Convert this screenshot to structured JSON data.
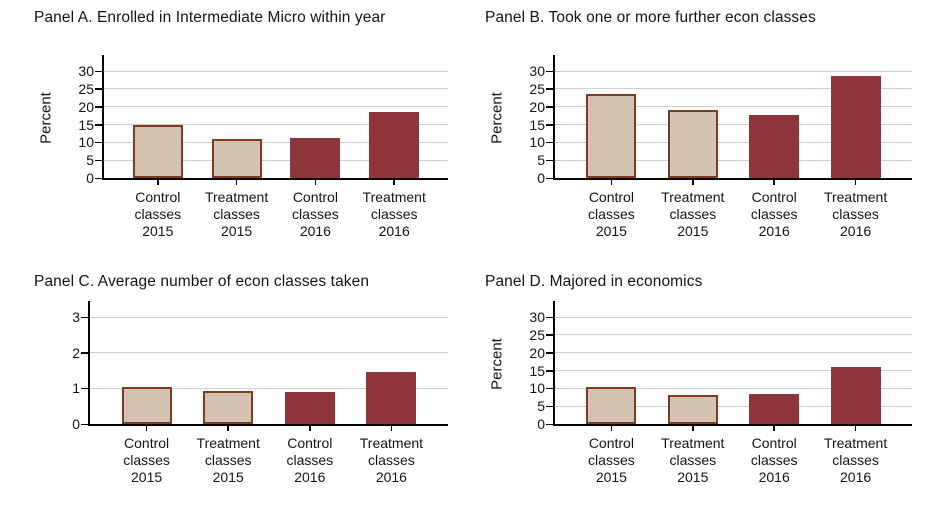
{
  "figure": {
    "background": "#ffffff"
  },
  "colors": {
    "tan_fill": "#d4c3b0",
    "tan_border": "#7f3d1d",
    "maroon_fill": "#8e343b",
    "maroon_border": "#8e343b",
    "gridline": "#cdcdd0",
    "axis": "#000000",
    "text": "#141414"
  },
  "chart_data": [
    {
      "type": "bar",
      "title": "Panel A. Enrolled in Intermediate Micro within year",
      "ylabel": "Percent",
      "xlabel": "",
      "ylim": [
        0,
        30
      ],
      "yticks": [
        0,
        5,
        10,
        15,
        20,
        25,
        30
      ],
      "grid": true,
      "legend": false,
      "categories": [
        "Control\nclasses\n2015",
        "Treatment\nclasses\n2015",
        "Control\nclasses\n2016",
        "Treatment\nclasses\n2016"
      ],
      "values": [
        14.9,
        11.0,
        11.2,
        18.6
      ],
      "bar_styles": [
        "tan",
        "tan",
        "maroon",
        "maroon"
      ]
    },
    {
      "type": "bar",
      "title": "Panel B. Took one or more further econ classes",
      "ylabel": "Percent",
      "xlabel": "",
      "ylim": [
        0,
        30
      ],
      "yticks": [
        0,
        5,
        10,
        15,
        20,
        25,
        30
      ],
      "grid": true,
      "legend": false,
      "categories": [
        "Control\nclasses\n2015",
        "Treatment\nclasses\n2015",
        "Control\nclasses\n2016",
        "Treatment\nclasses\n2016"
      ],
      "values": [
        23.6,
        19.0,
        17.7,
        28.5
      ],
      "bar_styles": [
        "tan",
        "tan",
        "maroon",
        "maroon"
      ]
    },
    {
      "type": "bar",
      "title": "Panel C. Average number of econ classes taken",
      "ylabel": "",
      "xlabel": "",
      "ylim": [
        0,
        3
      ],
      "yticks": [
        0,
        1,
        2,
        3
      ],
      "grid": true,
      "legend": false,
      "categories": [
        "Control\nclasses\n2015",
        "Treatment\nclasses\n2015",
        "Control\nclasses\n2016",
        "Treatment\nclasses\n2016"
      ],
      "values": [
        1.04,
        0.92,
        0.9,
        1.47
      ],
      "bar_styles": [
        "tan",
        "tan",
        "maroon",
        "maroon"
      ]
    },
    {
      "type": "bar",
      "title": "Panel D. Majored in economics",
      "ylabel": "Percent",
      "xlabel": "",
      "ylim": [
        0,
        30
      ],
      "yticks": [
        0,
        5,
        10,
        15,
        20,
        25,
        30
      ],
      "grid": true,
      "legend": false,
      "categories": [
        "Control\nclasses\n2015",
        "Treatment\nclasses\n2015",
        "Control\nclasses\n2016",
        "Treatment\nclasses\n2016"
      ],
      "values": [
        10.4,
        8.1,
        8.5,
        15.9
      ],
      "bar_styles": [
        "tan",
        "tan",
        "maroon",
        "maroon"
      ]
    }
  ]
}
